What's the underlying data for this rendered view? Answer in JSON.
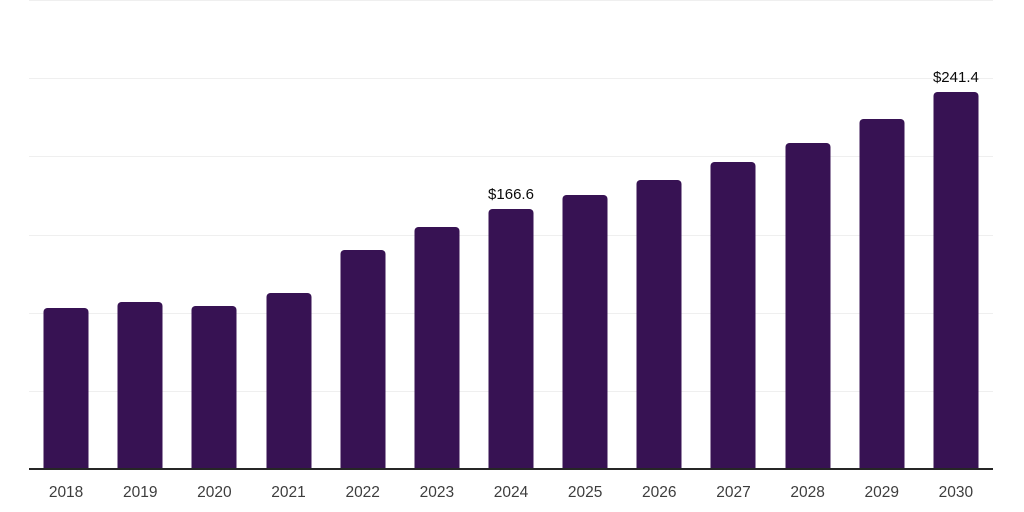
{
  "chart_data": {
    "type": "bar",
    "title": "",
    "xlabel": "",
    "ylabel": "",
    "categories": [
      "2018",
      "2019",
      "2020",
      "2021",
      "2022",
      "2023",
      "2024",
      "2025",
      "2026",
      "2027",
      "2028",
      "2029",
      "2030"
    ],
    "values": [
      103.4,
      107.2,
      104.7,
      113.0,
      140.4,
      155.1,
      166.6,
      175.5,
      185.1,
      196.6,
      208.7,
      224.0,
      241.4
    ],
    "data_labels": [
      "",
      "",
      "",
      "",
      "",
      "",
      "$166.6",
      "",
      "",
      "",
      "",
      "",
      "$241.4"
    ],
    "ylim": [
      0,
      300
    ],
    "gridline_interval": 50,
    "grid_visible": true,
    "legend_position": "none",
    "colors": {
      "bar": "#371253",
      "gridline": "#efefef",
      "axis_line": "#262626",
      "tick_label": "#3d3d3d",
      "data_label": "#0a0a0a",
      "background": "#ffffff"
    }
  }
}
